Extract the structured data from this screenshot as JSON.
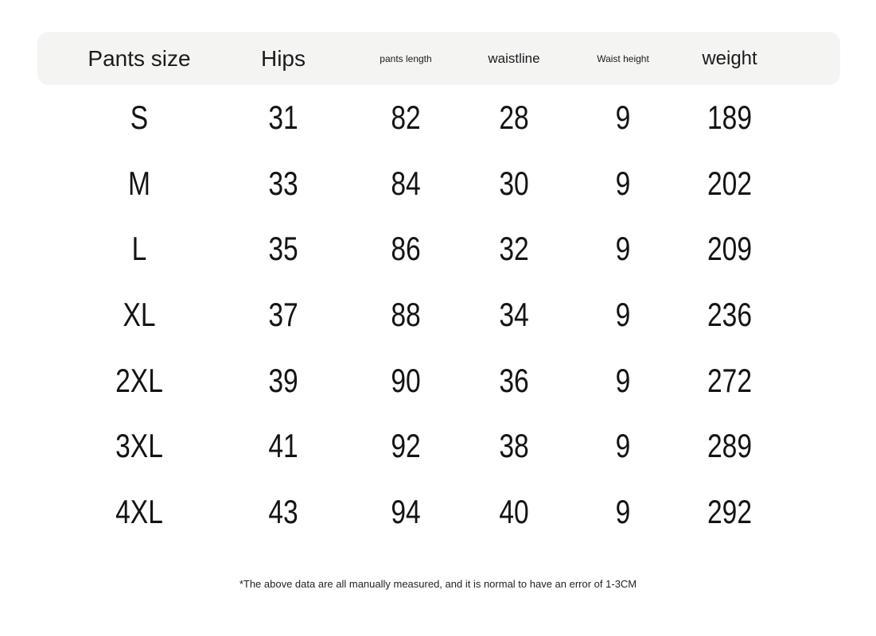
{
  "chart_data": {
    "type": "table",
    "columns": [
      "Pants size",
      "Hips",
      "pants length",
      "waistline",
      "Waist height",
      "weight"
    ],
    "rows": [
      [
        "S",
        "31",
        "82",
        "28",
        "9",
        "189"
      ],
      [
        "M",
        "33",
        "84",
        "30",
        "9",
        "202"
      ],
      [
        "L",
        "35",
        "86",
        "32",
        "9",
        "209"
      ],
      [
        "XL",
        "37",
        "88",
        "34",
        "9",
        "236"
      ],
      [
        "2XL",
        "39",
        "90",
        "36",
        "9",
        "272"
      ],
      [
        "3XL",
        "41",
        "92",
        "38",
        "9",
        "289"
      ],
      [
        "4XL",
        "43",
        "94",
        "40",
        "9",
        "292"
      ]
    ],
    "footnote": "*The above data are all manually measured, and it is normal to have an error of 1-3CM",
    "layout": {
      "header_background": "#f4f4f3",
      "text_color": "#141414",
      "page_background": "#ffffff"
    }
  }
}
